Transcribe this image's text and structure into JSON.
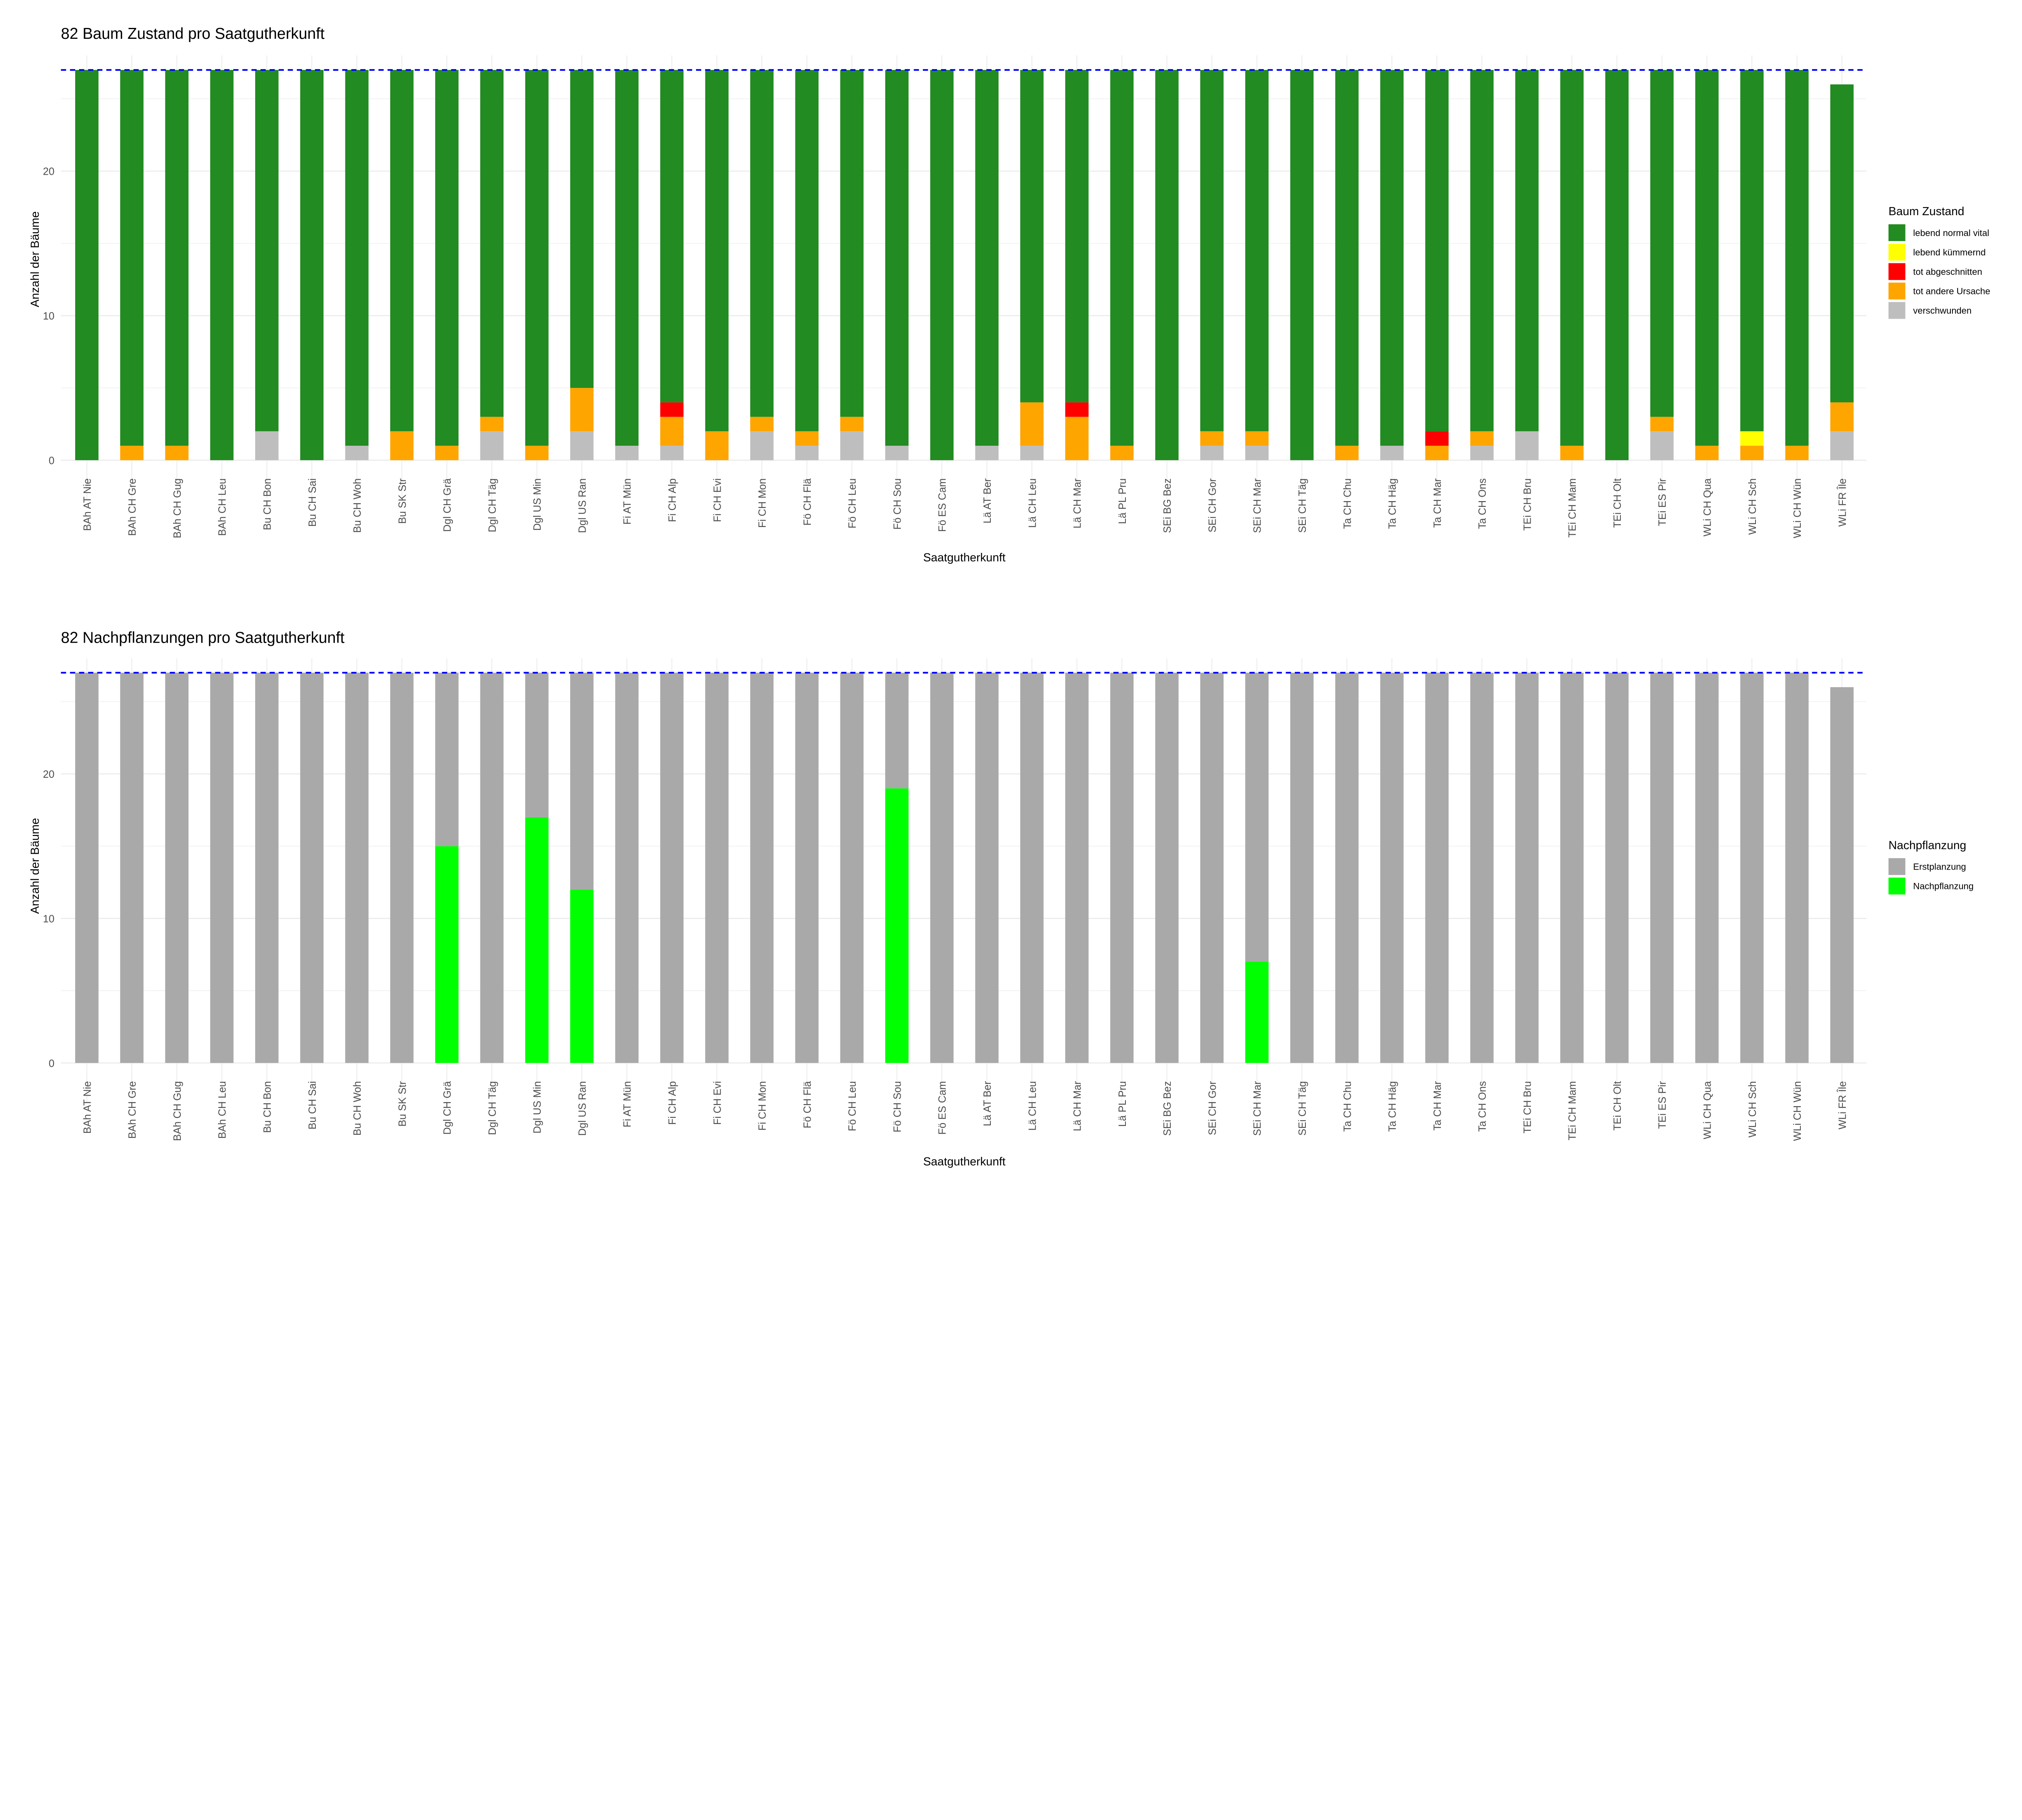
{
  "chart_data": [
    {
      "type": "bar",
      "stacked": true,
      "title": "82 Baum Zustand pro Saatgutherkunft",
      "xlabel": "Saatgutherkunft",
      "ylabel": "Anzahl der Bäume",
      "ylim": [
        0,
        28
      ],
      "yticks": [
        0,
        10,
        20
      ],
      "grid": true,
      "reference_line": {
        "value": 27,
        "style": "dashed",
        "color": "#0000FF"
      },
      "legend": {
        "title": "Baum Zustand",
        "position": "right"
      },
      "categories": [
        "BAh AT Nie",
        "BAh CH Gre",
        "BAh CH Gug",
        "BAh CH Leu",
        "Bu CH Bon",
        "Bu CH Sai",
        "Bu CH Woh",
        "Bu SK Str",
        "Dgl CH Grä",
        "Dgl CH Täg",
        "Dgl US Min",
        "Dgl US Ran",
        "Fi AT Mün",
        "Fi CH Alp",
        "Fi CH Evi",
        "Fi CH Mon",
        "Fö CH Flä",
        "Fö CH Leu",
        "Fö CH Sou",
        "Fö ES Cam",
        "Lä AT Ber",
        "Lä CH Leu",
        "Lä CH Mar",
        "Lä PL Pru",
        "SEi BG Bez",
        "SEi CH Gor",
        "SEi CH Mar",
        "SEi CH Täg",
        "Ta CH Chu",
        "Ta CH Häg",
        "Ta CH Mar",
        "Ta CH Ons",
        "TEi CH Bru",
        "TEi CH Mam",
        "TEi CH Olt",
        "TEi ES Pir",
        "WLi CH Qua",
        "WLi CH Sch",
        "WLi CH Wün",
        "WLi FR Île"
      ],
      "series": [
        {
          "name": "lebend normal vital",
          "color": "#228B22",
          "values": [
            27,
            26,
            26,
            27,
            25,
            27,
            26,
            25,
            26,
            24,
            26,
            22,
            26,
            23,
            25,
            24,
            25,
            24,
            26,
            27,
            26,
            23,
            23,
            26,
            27,
            25,
            25,
            27,
            26,
            26,
            25,
            25,
            25,
            26,
            27,
            24,
            26,
            25,
            26,
            22
          ]
        },
        {
          "name": "lebend kümmernd",
          "color": "#FFFF00",
          "values": [
            0,
            0,
            0,
            0,
            0,
            0,
            0,
            0,
            0,
            0,
            0,
            0,
            0,
            0,
            0,
            0,
            0,
            0,
            0,
            0,
            0,
            0,
            0,
            0,
            0,
            0,
            0,
            0,
            0,
            0,
            0,
            0,
            0,
            0,
            0,
            0,
            0,
            1,
            0,
            0
          ]
        },
        {
          "name": "tot abgeschnitten",
          "color": "#FF0000",
          "values": [
            0,
            0,
            0,
            0,
            0,
            0,
            0,
            0,
            0,
            0,
            0,
            0,
            0,
            1,
            0,
            0,
            0,
            0,
            0,
            0,
            0,
            0,
            1,
            0,
            0,
            0,
            0,
            0,
            0,
            0,
            1,
            0,
            0,
            0,
            0,
            0,
            0,
            0,
            0,
            0
          ]
        },
        {
          "name": "tot andere Ursache",
          "color": "#FFA500",
          "values": [
            0,
            1,
            1,
            0,
            0,
            0,
            0,
            2,
            1,
            1,
            1,
            3,
            0,
            2,
            2,
            1,
            1,
            1,
            0,
            0,
            0,
            3,
            3,
            1,
            0,
            1,
            1,
            0,
            1,
            0,
            1,
            1,
            0,
            1,
            0,
            1,
            1,
            1,
            1,
            2
          ]
        },
        {
          "name": "verschwunden",
          "color": "#BEBEBE",
          "values": [
            0,
            0,
            0,
            0,
            2,
            0,
            1,
            0,
            0,
            2,
            0,
            2,
            1,
            1,
            0,
            2,
            1,
            2,
            1,
            0,
            1,
            1,
            0,
            0,
            0,
            1,
            1,
            0,
            0,
            1,
            0,
            1,
            2,
            0,
            0,
            2,
            0,
            0,
            0,
            2
          ]
        }
      ]
    },
    {
      "type": "bar",
      "stacked": true,
      "title": "82 Nachpflanzungen pro Saatgutherkunft",
      "xlabel": "Saatgutherkunft",
      "ylabel": "Anzahl der Bäume",
      "ylim": [
        0,
        28
      ],
      "yticks": [
        0,
        10,
        20
      ],
      "grid": true,
      "reference_line": {
        "value": 27,
        "style": "dashed",
        "color": "#0000FF"
      },
      "legend": {
        "title": "Nachpflanzung",
        "position": "right"
      },
      "categories": [
        "BAh AT Nie",
        "BAh CH Gre",
        "BAh CH Gug",
        "BAh CH Leu",
        "Bu CH Bon",
        "Bu CH Sai",
        "Bu CH Woh",
        "Bu SK Str",
        "Dgl CH Grä",
        "Dgl CH Täg",
        "Dgl US Min",
        "Dgl US Ran",
        "Fi AT Mün",
        "Fi CH Alp",
        "Fi CH Evi",
        "Fi CH Mon",
        "Fö CH Flä",
        "Fö CH Leu",
        "Fö CH Sou",
        "Fö ES Cam",
        "Lä AT Ber",
        "Lä CH Leu",
        "Lä CH Mar",
        "Lä PL Pru",
        "SEi BG Bez",
        "SEi CH Gor",
        "SEi CH Mar",
        "SEi CH Täg",
        "Ta CH Chu",
        "Ta CH Häg",
        "Ta CH Mar",
        "Ta CH Ons",
        "TEi CH Bru",
        "TEi CH Mam",
        "TEi CH Olt",
        "TEi ES Pir",
        "WLi CH Qua",
        "WLi CH Sch",
        "WLi CH Wün",
        "WLi FR Île"
      ],
      "series": [
        {
          "name": "Erstplanzung",
          "color": "#A9A9A9",
          "values": [
            27,
            27,
            27,
            27,
            27,
            27,
            27,
            27,
            12,
            27,
            10,
            15,
            27,
            27,
            27,
            27,
            27,
            27,
            8,
            27,
            27,
            27,
            27,
            27,
            27,
            27,
            20,
            27,
            27,
            27,
            27,
            27,
            27,
            27,
            27,
            27,
            27,
            27,
            27,
            26
          ]
        },
        {
          "name": "Nachpflanzung",
          "color": "#00FF00",
          "values": [
            0,
            0,
            0,
            0,
            0,
            0,
            0,
            0,
            15,
            0,
            17,
            12,
            0,
            0,
            0,
            0,
            0,
            0,
            19,
            0,
            0,
            0,
            0,
            0,
            0,
            0,
            7,
            0,
            0,
            0,
            0,
            0,
            0,
            0,
            0,
            0,
            0,
            0,
            0,
            0
          ]
        }
      ]
    }
  ]
}
